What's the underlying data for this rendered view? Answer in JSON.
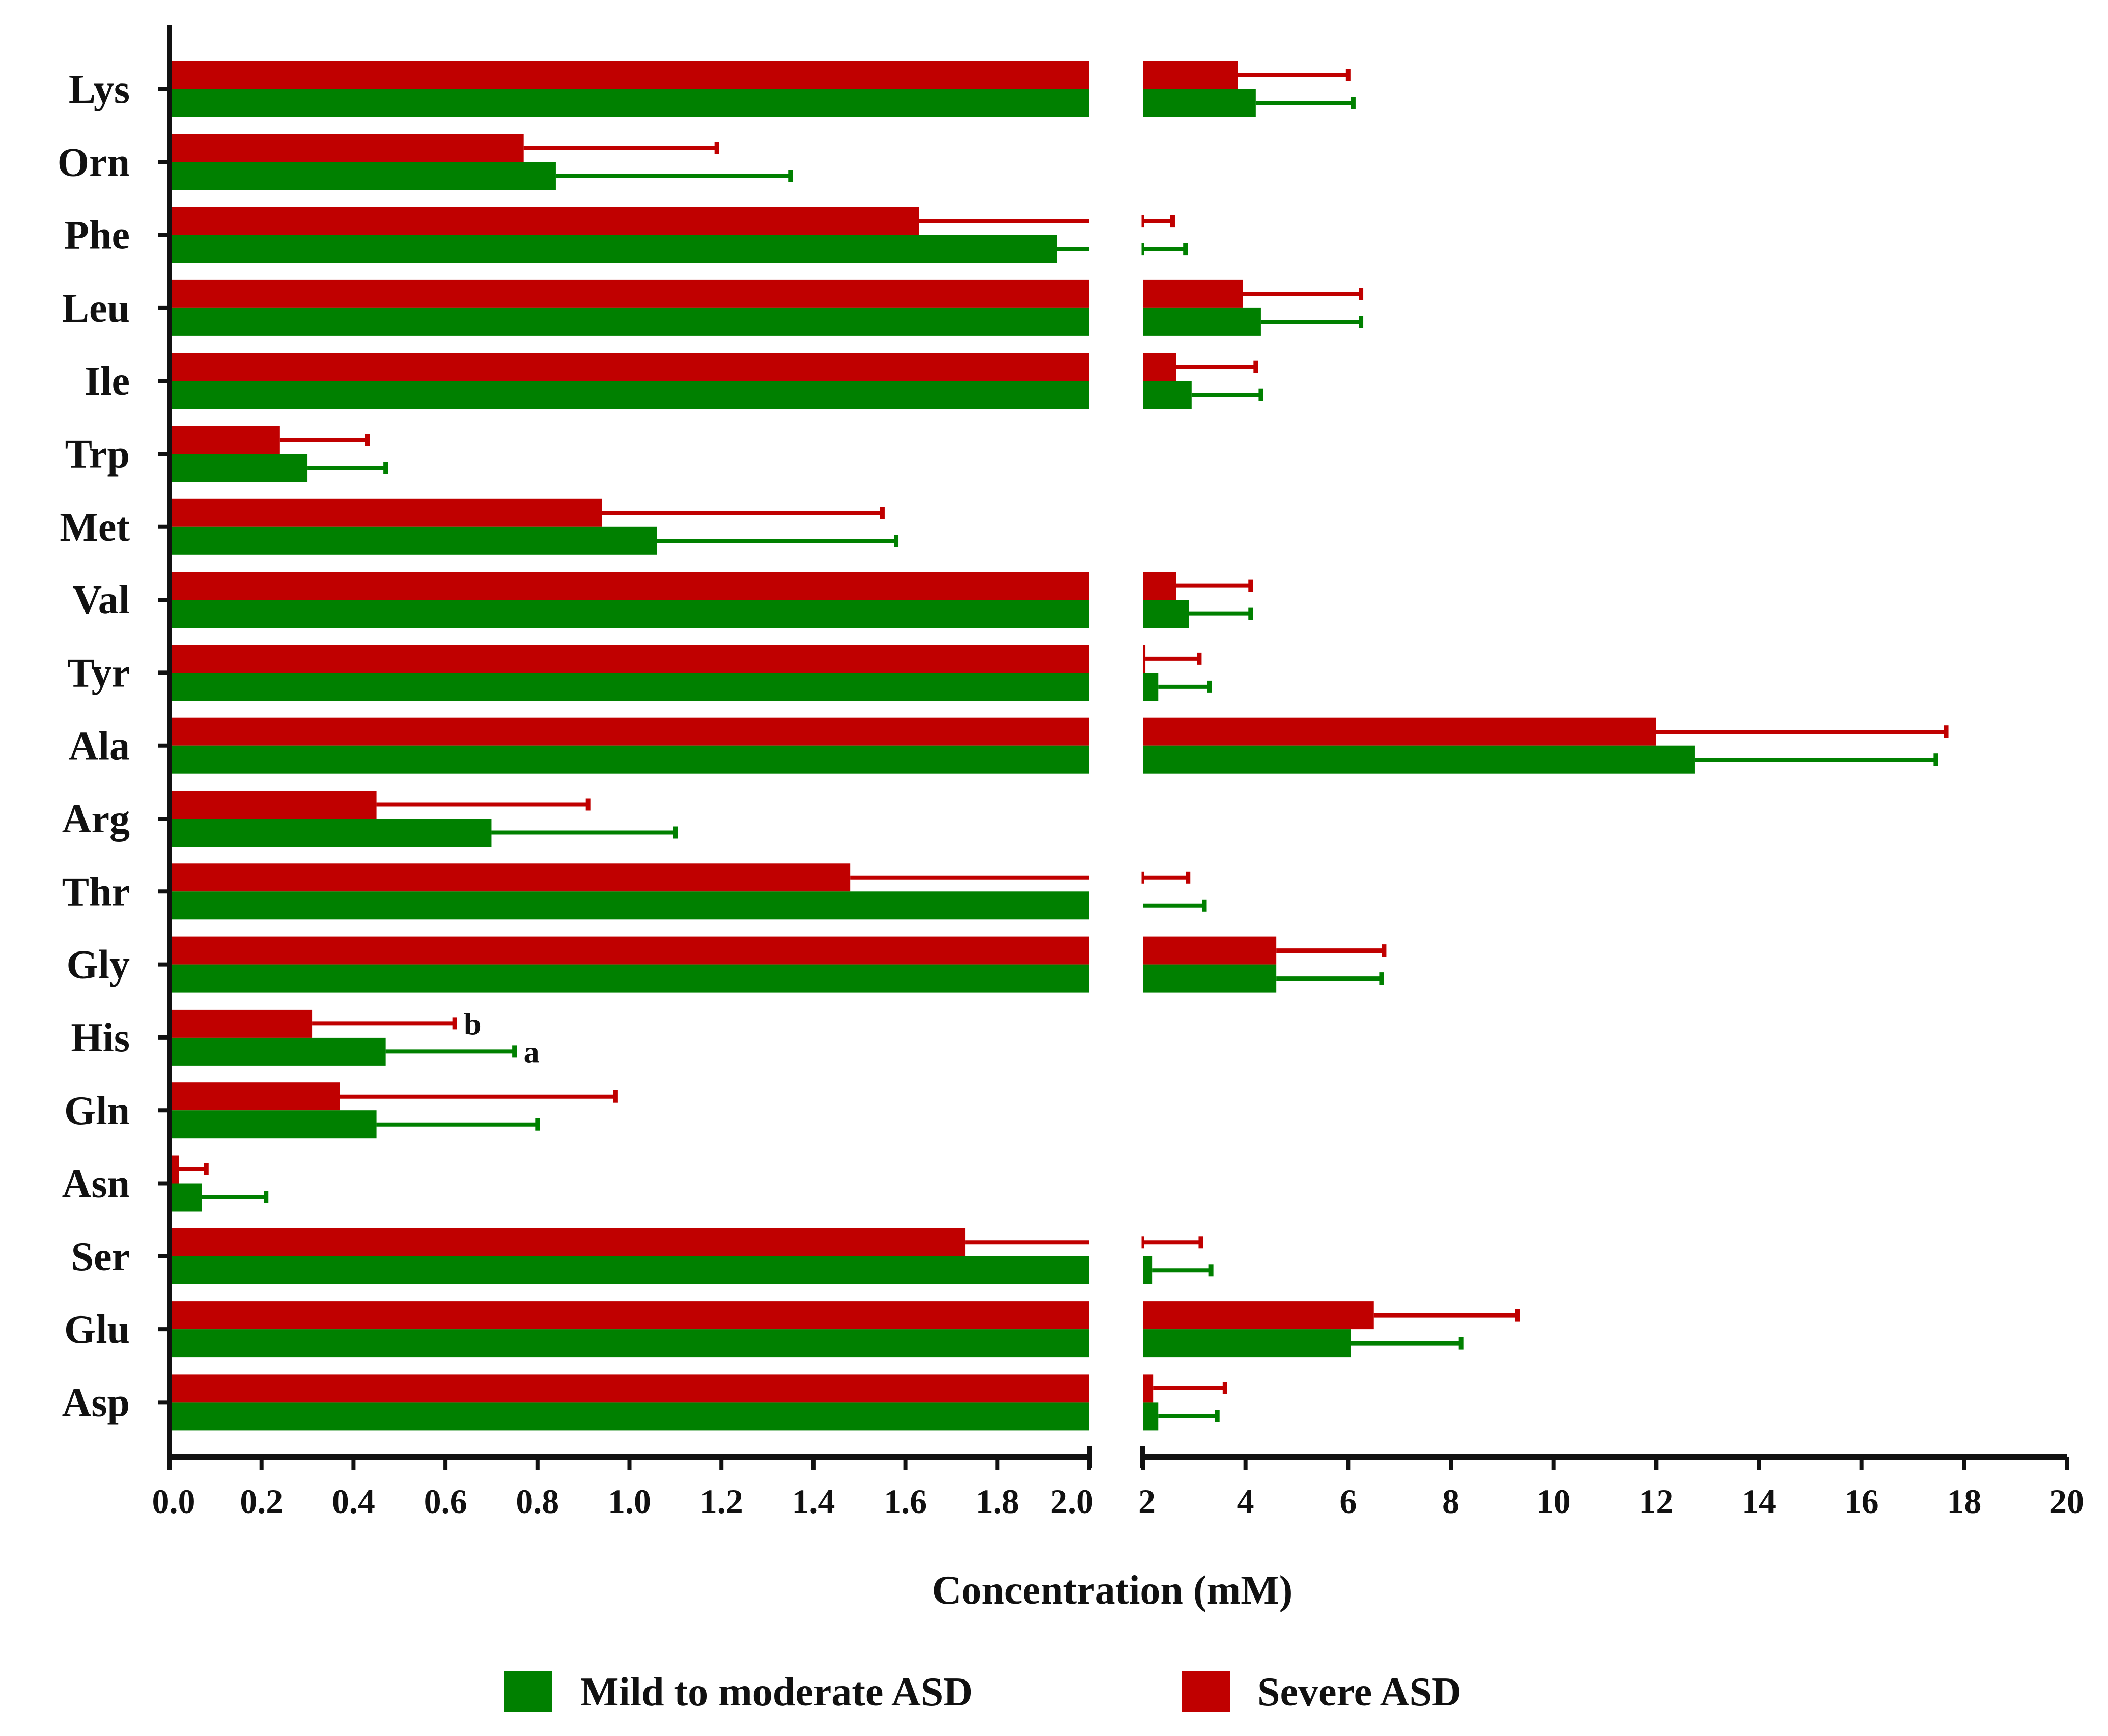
{
  "chart_data": {
    "type": "bar",
    "orientation": "horizontal",
    "xlabel": "Concentration (mM)",
    "ylabel": "",
    "axis_break": true,
    "segments": [
      {
        "name": "low",
        "xlim": [
          0,
          2.0
        ],
        "ticks": [
          "0.0",
          "0.2",
          "0.4",
          "0.6",
          "0.8",
          "1.0",
          "1.2",
          "1.4",
          "1.6",
          "1.8",
          "2.0"
        ]
      },
      {
        "name": "high",
        "xlim": [
          2,
          20
        ],
        "ticks": [
          "2",
          "4",
          "6",
          "8",
          "10",
          "12",
          "14",
          "16",
          "18",
          "20"
        ]
      }
    ],
    "categories": [
      "Lys",
      "Orn",
      "Phe",
      "Leu",
      "Ile",
      "Trp",
      "Met",
      "Val",
      "Tyr",
      "Ala",
      "Arg",
      "Thr",
      "Gly",
      "His",
      "Gln",
      "Asn",
      "Ser",
      "Glu",
      "Asp"
    ],
    "series": [
      {
        "name": "Severe ASD",
        "color": "#c00000",
        "values": [
          3.85,
          0.77,
          1.63,
          3.95,
          2.65,
          0.24,
          0.94,
          2.65,
          2.05,
          12.0,
          0.45,
          1.48,
          4.6,
          0.31,
          0.37,
          0.02,
          1.73,
          6.5,
          2.2
        ],
        "errors": [
          2.15,
          0.42,
          0.95,
          2.3,
          1.55,
          0.19,
          0.61,
          1.45,
          1.05,
          5.65,
          0.46,
          1.4,
          2.1,
          0.31,
          0.6,
          0.06,
          1.4,
          2.8,
          1.4
        ]
      },
      {
        "name": "Mild to moderate ASD",
        "color": "#008000",
        "values": [
          4.2,
          0.84,
          1.93,
          4.3,
          2.95,
          0.3,
          1.06,
          2.9,
          2.3,
          12.75,
          0.7,
          2.0,
          4.6,
          0.47,
          0.45,
          0.07,
          2.18,
          6.05,
          2.3
        ],
        "errors": [
          1.9,
          0.51,
          0.9,
          1.95,
          1.35,
          0.17,
          0.52,
          1.2,
          1.0,
          4.7,
          0.4,
          1.2,
          2.05,
          0.28,
          0.35,
          0.14,
          1.15,
          2.15,
          1.15
        ]
      }
    ],
    "annotations": [
      {
        "category": "His",
        "series": "Severe ASD",
        "text": "b"
      },
      {
        "category": "His",
        "series": "Mild to moderate ASD",
        "text": "a"
      }
    ],
    "legend": {
      "position": "bottom",
      "items": [
        "Mild to moderate ASD",
        "Severe ASD"
      ]
    }
  }
}
